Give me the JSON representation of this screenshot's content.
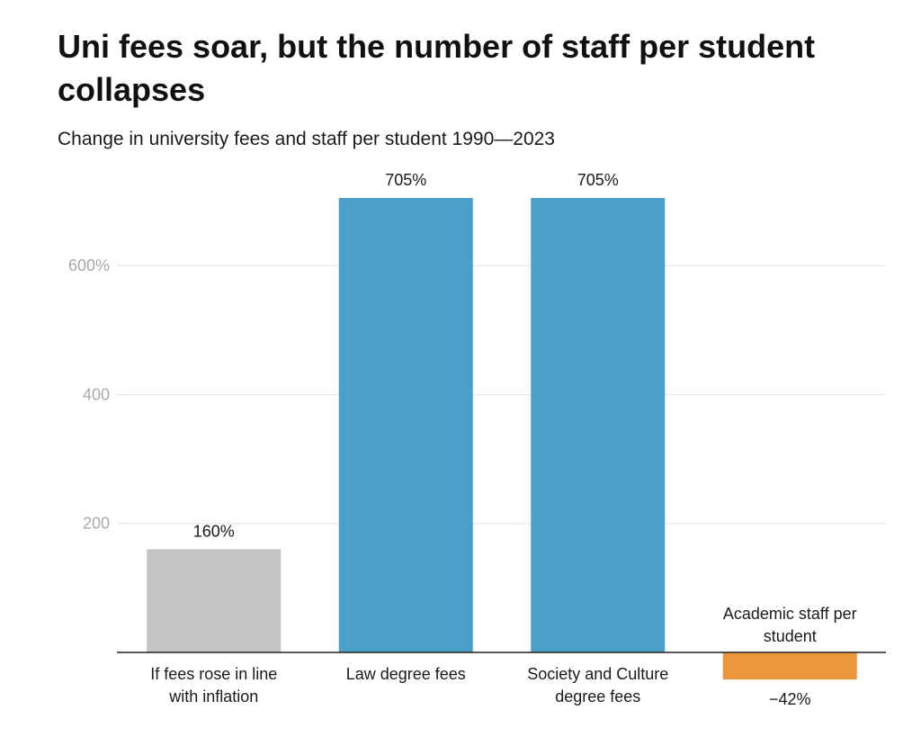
{
  "chart_data": {
    "type": "bar",
    "title": "Uni fees soar, but the number of staff per student collapses",
    "subtitle": "Change in university fees and staff per student 1990—2023",
    "xlabel": "",
    "ylabel": "",
    "ylim": [
      -60,
      720
    ],
    "y_ticks": [
      {
        "value": 200,
        "label": "200"
      },
      {
        "value": 400,
        "label": "400"
      },
      {
        "value": 600,
        "label": "600%"
      }
    ],
    "grid": true,
    "categories": [
      {
        "label_lines": [
          "If fees rose in line",
          "with inflation"
        ],
        "value": 160,
        "value_label": "160%",
        "color": "#c4c4c4"
      },
      {
        "label_lines": [
          "Law degree fees"
        ],
        "value": 705,
        "value_label": "705%",
        "color": "#4aa0c9"
      },
      {
        "label_lines": [
          "Society and Culture",
          "degree fees"
        ],
        "value": 705,
        "value_label": "705%",
        "color": "#4aa0c9"
      },
      {
        "label_lines": [
          "Academic staff per",
          "student"
        ],
        "value": -42,
        "value_label": "−42%",
        "color": "#ea963a"
      }
    ]
  }
}
